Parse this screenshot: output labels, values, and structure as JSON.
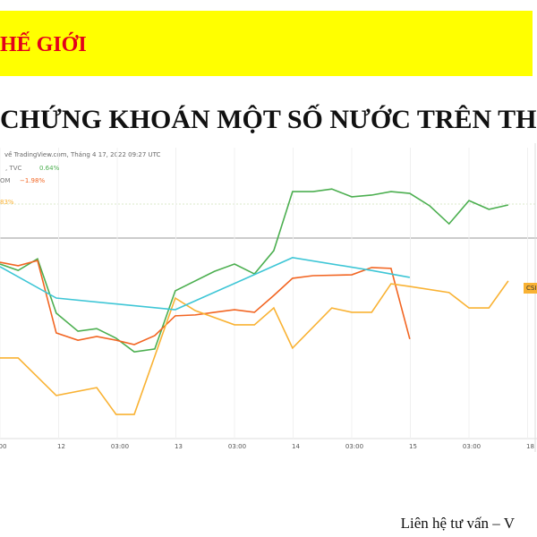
{
  "header": {
    "title": "HẾ GIỚI",
    "subtitle": "CHỨNG KHOÁN MỘT SỐ NƯỚC TRÊN TH"
  },
  "chart_data": {
    "type": "line",
    "source": "về TradingView.com, Tháng 4 17, 2022 09:27 UTC",
    "annotations": [
      {
        "text": ", TVC",
        "color": "#777777"
      },
      {
        "text": "0.64%",
        "color": "#4caf50"
      },
      {
        "text": "OM",
        "color": "#777777"
      },
      {
        "text": "−1.98%",
        "color": "#f26522"
      },
      {
        "text": "83%",
        "color": "#f9b233"
      },
      {
        "text": "CSI",
        "color": "#333333"
      }
    ],
    "xlim": [
      0,
      9.16
    ],
    "ylim": [
      0,
      100
    ],
    "xticks": [
      {
        "value": 0,
        "label": "00"
      },
      {
        "value": 1,
        "label": "12"
      },
      {
        "value": 2,
        "label": "03:00"
      },
      {
        "value": 3,
        "label": "13"
      },
      {
        "value": 4,
        "label": "03:00"
      },
      {
        "value": 5,
        "label": "14"
      },
      {
        "value": 6,
        "label": "03:00"
      },
      {
        "value": 7,
        "label": "15"
      },
      {
        "value": 8,
        "label": "03:00"
      },
      {
        "value": 9,
        "label": "18"
      }
    ],
    "series": [
      {
        "color": "#4caf50",
        "x": [
          0,
          0.31,
          0.64,
          0.96,
          1.33,
          1.65,
          1.98,
          2.29,
          2.64,
          2.99,
          3.66,
          4,
          4.34,
          4.67,
          4.99,
          5.34,
          5.66,
          6,
          6.34,
          6.67,
          6.99,
          7.33,
          7.66,
          8,
          8.34,
          8.67
        ],
        "values": [
          60,
          57.8,
          61.8,
          43.1,
          36.9,
          37.8,
          34.5,
          29.8,
          30.8,
          50.8,
          57.5,
          60,
          56.6,
          64.6,
          84.9,
          84.9,
          85.8,
          83.1,
          83.7,
          84.9,
          84.3,
          80,
          73.8,
          81.8,
          78.8,
          80.3
        ]
      },
      {
        "color": "#f26522",
        "x": [
          0,
          0.31,
          0.64,
          0.96,
          1.33,
          1.65,
          1.98,
          2.29,
          2.64,
          2.99,
          3.33,
          3.66,
          4,
          4.34,
          4.67,
          4.99,
          5.34,
          6,
          6.34,
          6.67,
          6.99
        ],
        "values": [
          60.6,
          59.4,
          61.2,
          36.3,
          33.8,
          35.1,
          33.8,
          32.3,
          35.4,
          42.2,
          42.5,
          43.4,
          44.3,
          43.4,
          49.2,
          55.1,
          56,
          56.3,
          58.8,
          58.5,
          34.2
        ]
      },
      {
        "color": "#f9b233",
        "x": [
          0,
          0.31,
          0.96,
          1.65,
          1.98,
          2.29,
          2.99,
          3.33,
          4,
          4.34,
          4.67,
          4.99,
          5.66,
          6,
          6.34,
          6.67,
          6.99,
          7.66,
          8,
          8.34,
          8.67
        ],
        "values": [
          27.7,
          27.7,
          14.8,
          17.5,
          8.3,
          8.3,
          48.3,
          44,
          39.1,
          39.1,
          44.9,
          31.1,
          44.9,
          43.4,
          43.4,
          53.2,
          52.3,
          50.2,
          44.9,
          44.9,
          54.2
        ]
      },
      {
        "color": "#3ec6d6",
        "x": [
          0,
          0.96,
          2.99,
          4.99,
          6.34,
          6.99
        ],
        "values": [
          59.1,
          48.3,
          44.3,
          62.2,
          57.8,
          55.4
        ]
      }
    ]
  },
  "footer": "Liên hệ tư vấn – V"
}
